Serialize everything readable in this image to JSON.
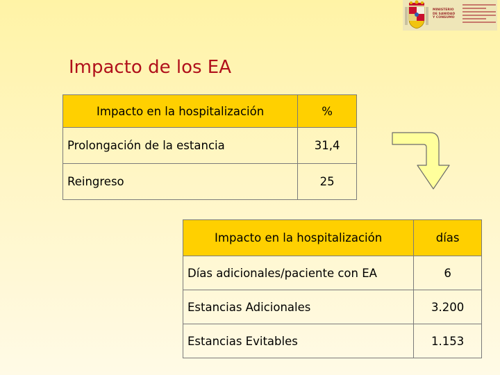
{
  "header": {
    "emblem_icon": "spanish-coat-of-arms",
    "ministry_lines": [
      "MINISTERIO",
      "DE SANIDAD",
      "Y CONSUMO"
    ]
  },
  "title": "Impacto de los EA",
  "table1": {
    "header": [
      "Impacto en la hospitalización",
      "%"
    ],
    "rows": [
      [
        "Prolongación de la estancia",
        "31,4"
      ],
      [
        "Reingreso",
        "25"
      ]
    ]
  },
  "table2": {
    "header": [
      "Impacto en la hospitalización",
      "días"
    ],
    "rows": [
      [
        "Días adicionales/paciente con EA",
        "6"
      ],
      [
        "Estancias Adicionales",
        "3.200"
      ],
      [
        "Estancias Evitables",
        "1.153"
      ]
    ]
  },
  "arrow_icon": "curved-arrow-down-icon",
  "colors": {
    "title": "#b0101b",
    "header_fill": "#ffd000",
    "arrow_fill": "#ffff9c"
  }
}
